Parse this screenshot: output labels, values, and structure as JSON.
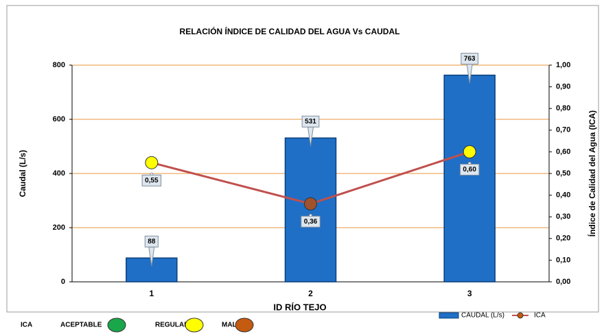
{
  "chart_data": {
    "type": "combo",
    "title": "RELACIÓN ÍNDICE DE CALIDAD DEL AGUA Vs CAUDAL",
    "x_label": "ID RÍO TEJO",
    "y_label": "Caudal (L/s)",
    "y2_label": "Índice de Calidad del Agua  (ICA)",
    "categories": [
      "1",
      "2",
      "3"
    ],
    "series": [
      {
        "name": "CAUDAL (L/s)",
        "kind": "bar",
        "color": "#1f6fc6",
        "values": [
          88,
          531,
          763
        ]
      },
      {
        "name": "ICA",
        "kind": "line",
        "axis": "y2",
        "color": "#c0504d",
        "values": [
          0.55,
          0.36,
          0.6
        ],
        "value_labels": [
          "0,55",
          "0,36",
          "0,60"
        ],
        "point_colors": [
          "#ffff00",
          "#a0522d",
          "#ffff00"
        ]
      }
    ],
    "ylim": [
      0,
      800
    ],
    "yticks": [
      0,
      200,
      400,
      600,
      800
    ],
    "y2lim": [
      0,
      1
    ],
    "y2ticks": [
      {
        "value": 0,
        "label": "0,00"
      },
      {
        "value": 0.1,
        "label": "0,10"
      },
      {
        "value": 0.2,
        "label": "0,20"
      },
      {
        "value": 0.3,
        "label": "0,30"
      },
      {
        "value": 0.4,
        "label": "0,40"
      },
      {
        "value": 0.5,
        "label": "0,50"
      },
      {
        "value": 0.6,
        "label": "0,60"
      },
      {
        "value": 0.7,
        "label": "0,70"
      },
      {
        "value": 0.8,
        "label": "0,80"
      },
      {
        "value": 0.9,
        "label": "0,90"
      },
      {
        "value": 1,
        "label": "1,00"
      }
    ],
    "grid": true,
    "grid_color": "#e8963c",
    "ica_legend": {
      "title": "ICA",
      "items": [
        {
          "name": "ACEPTABLE",
          "color": "#1aa64a"
        },
        {
          "name": "REGULAR",
          "color": "#ffff00"
        },
        {
          "name": "MALA",
          "color": "#c55a11"
        }
      ]
    }
  }
}
